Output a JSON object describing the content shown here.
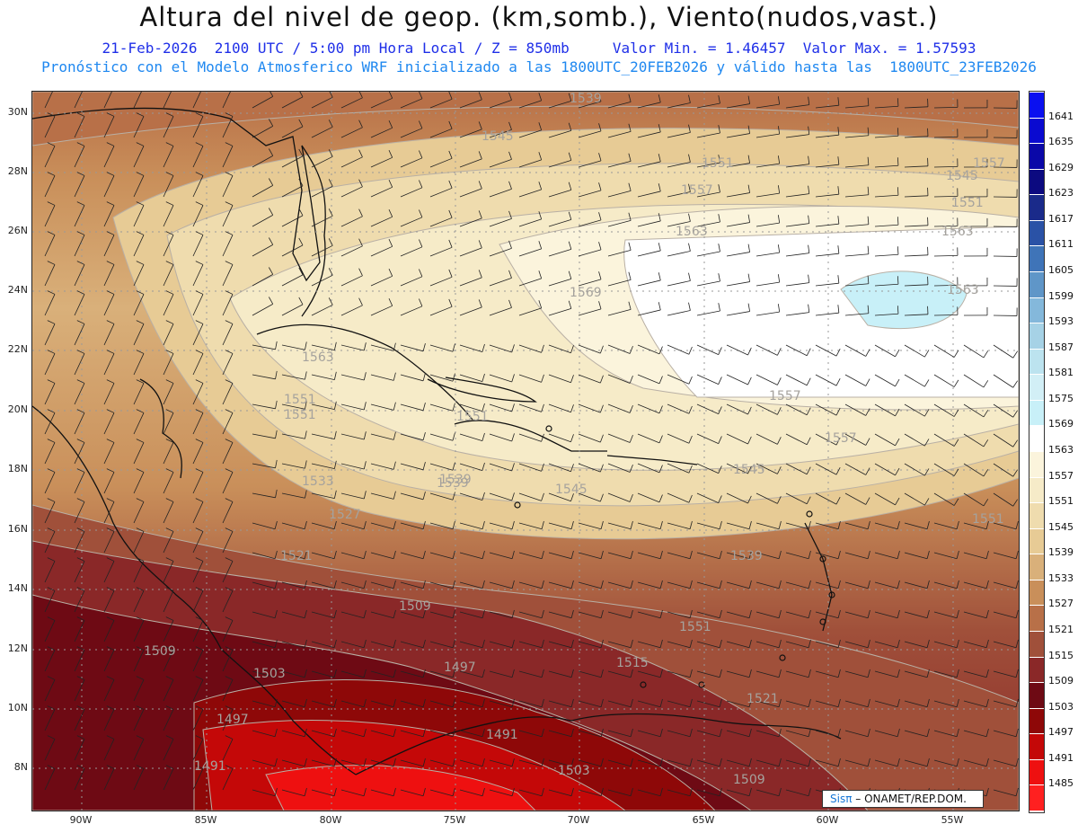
{
  "header": {
    "title": "Altura del nivel de geop. (km,somb.), Viento(nudos,vast.)",
    "line1": "21-Feb-2026  2100 UTC / 5:00 pm Hora Local / Z = 850mb     Valor Min. = 1.46457  Valor Max. = 1.57593",
    "line2": "Pronóstico con el Modelo Atmosferico WRF inicializado a las 1800UTC_20FEB2026 y válido hasta las  1800UTC_23FEB2026"
  },
  "axes": {
    "lat_ticks": [
      "30N",
      "28N",
      "26N",
      "24N",
      "22N",
      "20N",
      "18N",
      "16N",
      "14N",
      "12N",
      "10N",
      "8N"
    ],
    "lon_ticks": [
      "90W",
      "85W",
      "80W",
      "75W",
      "70W",
      "65W",
      "60W",
      "55W"
    ]
  },
  "colorbar": {
    "levels": [
      "1641",
      "1635",
      "1629",
      "1623",
      "1617",
      "1611",
      "1605",
      "1599",
      "1593",
      "1587",
      "1581",
      "1575",
      "1569",
      "1563",
      "1557",
      "1551",
      "1545",
      "1539",
      "1533",
      "1527",
      "1521",
      "1515",
      "1509",
      "1503",
      "1497",
      "1491",
      "1485"
    ],
    "colors": [
      "#0a10f0",
      "#0a0ad0",
      "#0a08a8",
      "#0c0a80",
      "#1a2a8a",
      "#2a52a6",
      "#3f74b8",
      "#5f96c8",
      "#84b8db",
      "#a6d2e6",
      "#bce3ef",
      "#d2eff6",
      "#c8f0f8",
      "#ffffff",
      "#fbf4dc",
      "#f6ebc8",
      "#efdcae",
      "#e7cb95",
      "#d9b07a",
      "#c98f5a",
      "#b87048",
      "#a0503a",
      "#8a2828",
      "#6e0a14",
      "#8e0808",
      "#c40808",
      "#ee1010",
      "#ff2020"
    ]
  },
  "contour_labels": [
    "1539",
    "1545",
    "1551",
    "1557",
    "1545",
    "1551",
    "1557",
    "1563",
    "1563",
    "1569",
    "1563",
    "1563",
    "1557",
    "1551",
    "1557",
    "1551",
    "1545",
    "1539",
    "1533",
    "1527",
    "1551",
    "1545",
    "1551",
    "1539",
    "1521",
    "1509",
    "1509",
    "1503",
    "1497",
    "1515",
    "1497",
    "1491",
    "1491",
    "1503",
    "1509",
    "1521",
    "1539",
    "1551"
  ],
  "credit": {
    "brand": "Sisπ",
    "text": " – ONAMET/REP.DOM."
  }
}
